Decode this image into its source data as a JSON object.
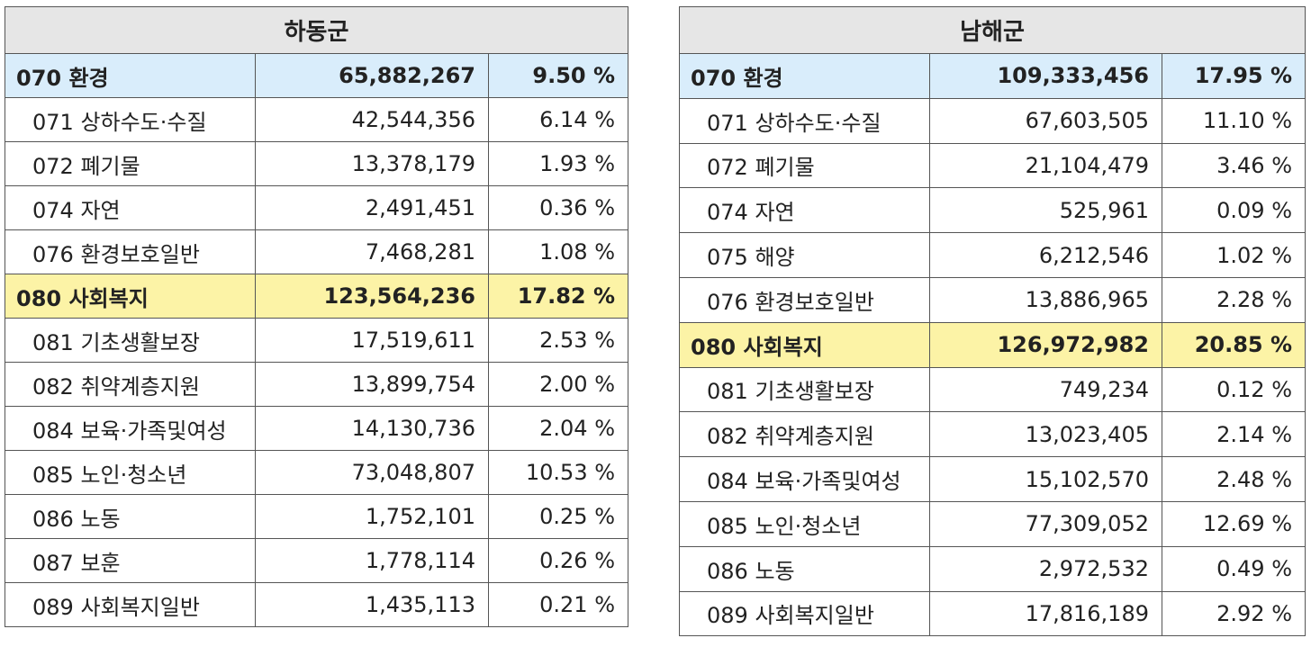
{
  "tables": [
    {
      "title": "하동군",
      "rows": [
        {
          "name": "070 환경",
          "amount": "65,882,267",
          "pct": "9.50 %",
          "category": "blue"
        },
        {
          "name": "071 상하수도·수질",
          "amount": "42,544,356",
          "pct": "6.14 %"
        },
        {
          "name": "072 폐기물",
          "amount": "13,378,179",
          "pct": "1.93 %"
        },
        {
          "name": "074 자연",
          "amount": "2,491,451",
          "pct": "0.36 %"
        },
        {
          "name": "076 환경보호일반",
          "amount": "7,468,281",
          "pct": "1.08 %"
        },
        {
          "name": "080 사회복지",
          "amount": "123,564,236",
          "pct": "17.82 %",
          "category": "yellow"
        },
        {
          "name": "081 기초생활보장",
          "amount": "17,519,611",
          "pct": "2.53 %"
        },
        {
          "name": "082 취약계층지원",
          "amount": "13,899,754",
          "pct": "2.00 %"
        },
        {
          "name": "084 보육·가족및여성",
          "amount": "14,130,736",
          "pct": "2.04 %"
        },
        {
          "name": "085 노인·청소년",
          "amount": "73,048,807",
          "pct": "10.53 %"
        },
        {
          "name": "086 노동",
          "amount": "1,752,101",
          "pct": "0.25 %"
        },
        {
          "name": "087 보훈",
          "amount": "1,778,114",
          "pct": "0.26 %"
        },
        {
          "name": "089 사회복지일반",
          "amount": "1,435,113",
          "pct": "0.21 %"
        }
      ]
    },
    {
      "title": "남해군",
      "rows": [
        {
          "name": "070 환경",
          "amount": "109,333,456",
          "pct": "17.95 %",
          "category": "blue"
        },
        {
          "name": "071 상하수도·수질",
          "amount": "67,603,505",
          "pct": "11.10 %"
        },
        {
          "name": "072 폐기물",
          "amount": "21,104,479",
          "pct": "3.46 %"
        },
        {
          "name": "074 자연",
          "amount": "525,961",
          "pct": "0.09 %"
        },
        {
          "name": "075 해양",
          "amount": "6,212,546",
          "pct": "1.02 %"
        },
        {
          "name": "076 환경보호일반",
          "amount": "13,886,965",
          "pct": "2.28 %"
        },
        {
          "name": "080 사회복지",
          "amount": "126,972,982",
          "pct": "20.85 %",
          "category": "yellow"
        },
        {
          "name": "081 기초생활보장",
          "amount": "749,234",
          "pct": "0.12 %"
        },
        {
          "name": "082 취약계층지원",
          "amount": "13,023,405",
          "pct": "2.14 %"
        },
        {
          "name": "084 보육·가족및여성",
          "amount": "15,102,570",
          "pct": "2.48 %"
        },
        {
          "name": "085 노인·청소년",
          "amount": "77,309,052",
          "pct": "12.69 %"
        },
        {
          "name": "086 노동",
          "amount": "2,972,532",
          "pct": "0.49 %"
        },
        {
          "name": "089 사회복지일반",
          "amount": "17,816,189",
          "pct": "2.92 %"
        }
      ]
    }
  ],
  "colors": {
    "header_bg": "#e6e6e6",
    "category_blue": "#d9edfb",
    "category_yellow": "#fcf3a6",
    "border": "#555555"
  }
}
